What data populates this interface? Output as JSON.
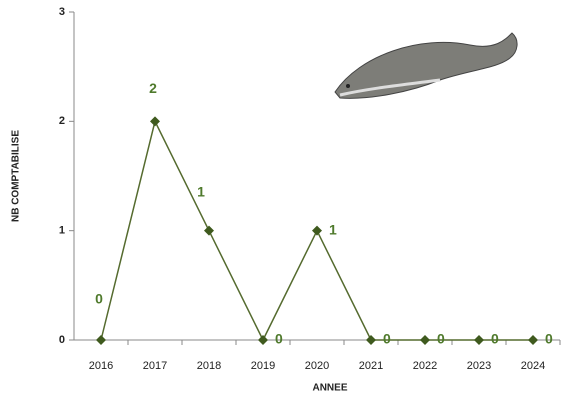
{
  "chart_data": {
    "type": "line",
    "x_label": "ANNEE",
    "y_label": "NB COMPTABILISE",
    "categories": [
      "2016",
      "2017",
      "2018",
      "2019",
      "2020",
      "2021",
      "2022",
      "2023",
      "2024"
    ],
    "series": [
      {
        "name": "NB COMPTABILISE",
        "color": "#556b2f",
        "values": [
          0,
          2,
          1,
          0,
          1,
          0,
          0,
          0,
          0
        ]
      }
    ],
    "ylim": [
      0,
      3
    ],
    "yticks": [
      0,
      1,
      2,
      3
    ]
  }
}
